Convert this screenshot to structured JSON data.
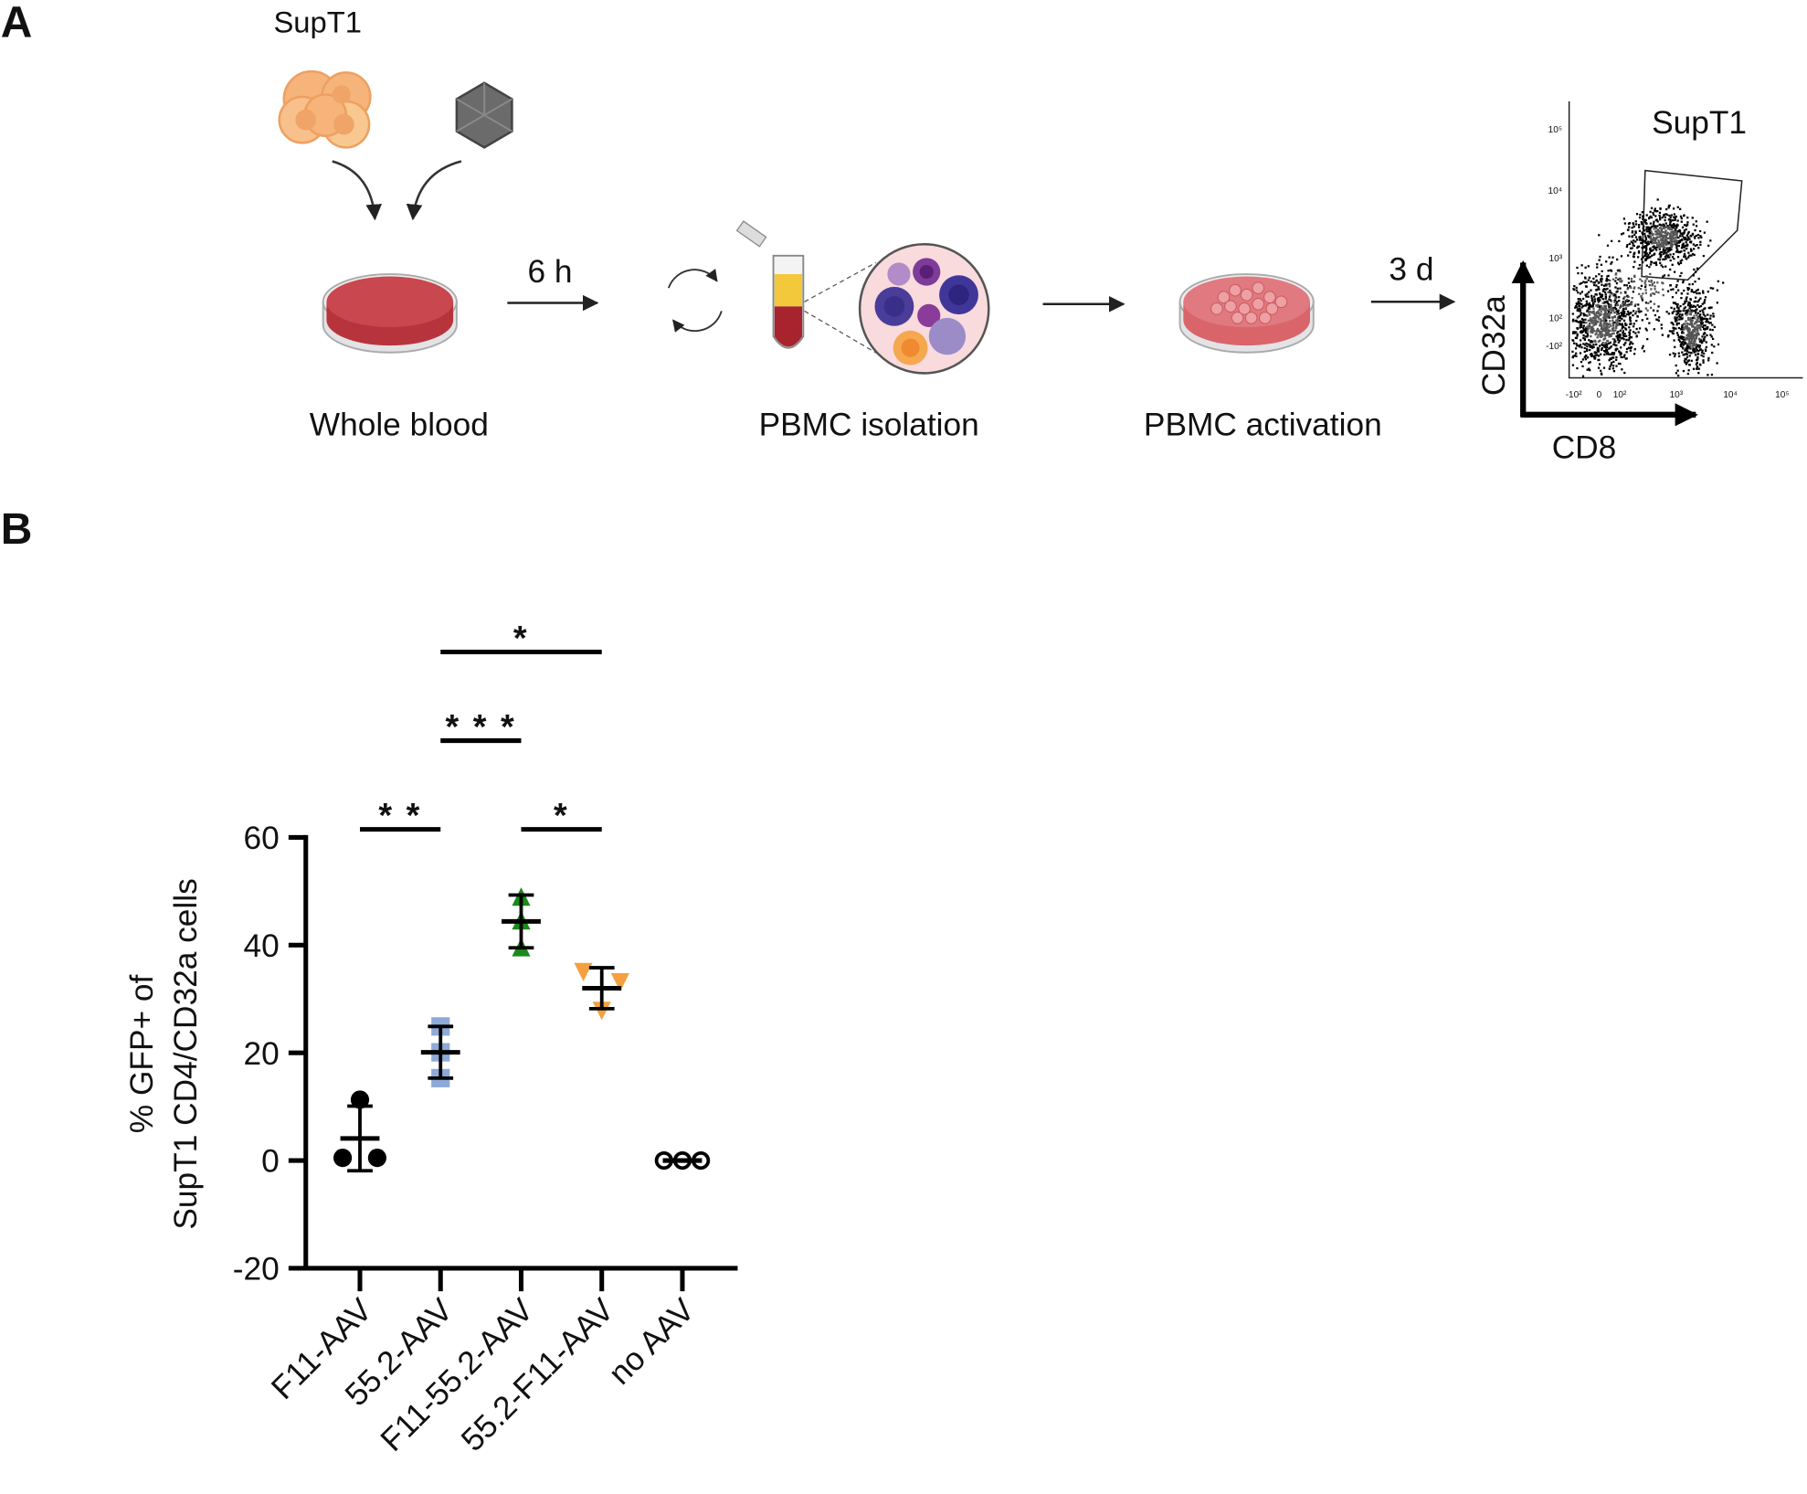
{
  "panel_a": {
    "label": "A",
    "cell_label": "SupT1",
    "steps": [
      "Whole blood",
      "PBMC isolation",
      "PBMC activation"
    ],
    "arrow_labels": [
      "6 h",
      "3 d"
    ],
    "flow_plot": {
      "gate_label": "SupT1",
      "y_label": "CD32a",
      "x_label": "CD8",
      "y_ticks": [
        "10⁵",
        "10⁴",
        "10³",
        "10²",
        "-10²"
      ],
      "x_ticks": [
        "-10²",
        "0",
        "10²",
        "10³",
        "10⁴",
        "10⁵"
      ]
    }
  },
  "panel_b_label": "B",
  "chart_data": {
    "type": "scatter",
    "y_label": [
      "% GFP+ of",
      "SupT1 CD4/CD32a cells"
    ],
    "categories": [
      "F11-AAV",
      "55.2-AAV",
      "F11-55.2-AAV",
      "55.2-F11-AAV",
      "no AAV"
    ],
    "ylim": [
      -20,
      60
    ],
    "yticks": [
      -20,
      0,
      20,
      40,
      60
    ],
    "series": [
      {
        "color": "#000000",
        "marker": "circle",
        "values": [
          11.3,
          0.5,
          0.5
        ],
        "mean": 4.1,
        "sd": 6.0
      },
      {
        "color": "#8eaad8",
        "marker": "square",
        "values": [
          24.9,
          20.1,
          15.3
        ],
        "mean": 20.1,
        "sd": 4.8
      },
      {
        "color": "#1a8a1a",
        "marker": "triangle-up",
        "values": [
          48.8,
          44.4,
          39.4
        ],
        "mean": 44.4,
        "sd": 4.9
      },
      {
        "color": "#f5a040",
        "marker": "triangle-down",
        "values": [
          35.2,
          33.3,
          28.0
        ],
        "mean": 32.0,
        "sd": 3.8
      },
      {
        "color": "#000000",
        "marker": "open-circle",
        "values": [
          0,
          0,
          0
        ],
        "mean": 0,
        "sd": 0
      }
    ],
    "annotations": [
      {
        "label": "* *",
        "groups": [
          "F11-AAV",
          "55.2-AAV"
        ]
      },
      {
        "label": "* * *",
        "groups": [
          "55.2-AAV",
          "F11-55.2-AAV"
        ]
      },
      {
        "label": "*",
        "groups": [
          "55.2-AAV",
          "55.2-F11-AAV"
        ]
      },
      {
        "label": "*",
        "groups": [
          "F11-55.2-AAV",
          "55.2-F11-AAV"
        ]
      }
    ]
  }
}
